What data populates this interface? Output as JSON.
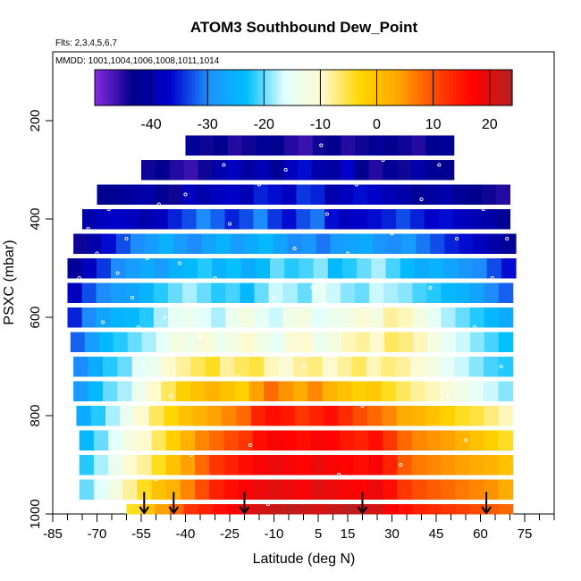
{
  "chart_data": {
    "type": "heatmap",
    "title": "ATOM3 Southbound Dew_Point",
    "flights_label": "Flts: 2,3,4,5,6,7",
    "dates_label": "MMDD: 1001,1004,1006,1008,1011,1014",
    "xlabel": "Latitude (deg N)",
    "ylabel": "PSXC (mbar)",
    "xlim": [
      -85,
      85
    ],
    "ylim": [
      1000,
      60
    ],
    "x_ticks": [
      "-85",
      "-70",
      "-55",
      "-40",
      "-25",
      "-10",
      "5",
      "15",
      "30",
      "45",
      "60",
      "75"
    ],
    "x_tick_values": [
      -85,
      -70,
      -55,
      -40,
      -25,
      -10,
      5,
      15,
      30,
      45,
      60,
      75
    ],
    "y_ticks": [
      "200",
      "400",
      "600",
      "800",
      "1000"
    ],
    "y_tick_values": [
      200,
      400,
      600,
      800,
      1000
    ],
    "colorbar": {
      "min": -50,
      "max": 24,
      "step": 10,
      "tick_values": [
        -40,
        -30,
        -20,
        -10,
        0,
        10,
        20
      ],
      "tick_labels": [
        "-40",
        "-30",
        "-20",
        "-10",
        "0",
        "10",
        "20"
      ],
      "colors": [
        "#8a2be2",
        "#00008b",
        "#0000cd",
        "#1e90ff",
        "#00bfff",
        "#e0ffff",
        "#fffacd",
        "#ffd700",
        "#ffa500",
        "#ff4500",
        "#ff0000",
        "#b22222"
      ]
    },
    "pressure_levels": [
      250,
      300,
      350,
      400,
      450,
      500,
      550,
      600,
      650,
      700,
      750,
      800,
      850,
      900,
      950,
      1000
    ],
    "lat_bins": [
      -80,
      -75,
      -70,
      -65,
      -60,
      -55,
      -50,
      -45,
      -40,
      -35,
      -30,
      -25,
      -20,
      -15,
      -10,
      -5,
      0,
      5,
      10,
      15,
      20,
      25,
      30,
      35,
      40,
      45,
      50,
      55,
      60,
      65,
      70
    ],
    "rows": [
      {
        "p": 250,
        "lat_min": -40,
        "lat_max": 51,
        "values": [
          -42,
          -44,
          -43,
          -45,
          -44,
          -42,
          -43,
          -45,
          -46,
          -44,
          -43,
          -45,
          -44,
          -42,
          -43,
          -44,
          -45,
          -43,
          -42
        ]
      },
      {
        "p": 300,
        "lat_min": -55,
        "lat_max": 51,
        "values": [
          -44,
          -43,
          -45,
          -46,
          -44,
          -40,
          -38,
          -41,
          -39,
          -42,
          -38,
          -36,
          -40,
          -41,
          -37,
          -43,
          -45,
          -42,
          -44,
          -40,
          -42,
          -43
        ]
      },
      {
        "p": 350,
        "lat_min": -70,
        "lat_max": 70,
        "values": [
          -43,
          -42,
          -41,
          -40,
          -42,
          -44,
          -38,
          -40,
          -38,
          -37,
          -39,
          -35,
          -36,
          -38,
          -34,
          -35,
          -40,
          -38,
          -36,
          -37,
          -39,
          -40,
          -42,
          -41,
          -40,
          -42,
          -43,
          -44,
          -45
        ]
      },
      {
        "p": 400,
        "lat_min": -75,
        "lat_max": 70,
        "values": [
          -40,
          -38,
          -37,
          -38,
          -40,
          -38,
          -35,
          -33,
          -30,
          -32,
          -35,
          -33,
          -30,
          -34,
          -36,
          -33,
          -31,
          -36,
          -38,
          -37,
          -36,
          -35,
          -33,
          -35,
          -37,
          -36,
          -38,
          -39,
          -40,
          -42
        ]
      },
      {
        "p": 450,
        "lat_min": -78,
        "lat_max": 72,
        "values": [
          -44,
          -40,
          -36,
          -33,
          -30,
          -28,
          -25,
          -28,
          -30,
          -27,
          -25,
          -28,
          -26,
          -24,
          -27,
          -30,
          -29,
          -31,
          -28,
          -27,
          -26,
          -29,
          -30,
          -28,
          -31,
          -33,
          -35,
          -36,
          -38,
          -40,
          -42
        ]
      },
      {
        "p": 500,
        "lat_min": -80,
        "lat_max": 72,
        "values": [
          -42,
          -38,
          -34,
          -30,
          -28,
          -26,
          -28,
          -25,
          -24,
          -22,
          -25,
          -23,
          -26,
          -24,
          -20,
          -22,
          -21,
          -19,
          -24,
          -22,
          -20,
          -18,
          -21,
          -24,
          -26,
          -25,
          -27,
          -29,
          -30,
          -33,
          -36
        ]
      },
      {
        "p": 550,
        "lat_min": -80,
        "lat_max": 71,
        "values": [
          -38,
          -33,
          -30,
          -28,
          -27,
          -25,
          -22,
          -20,
          -18,
          -20,
          -22,
          -21,
          -24,
          -20,
          -17,
          -18,
          -20,
          -15,
          -17,
          -19,
          -20,
          -17,
          -18,
          -19,
          -21,
          -22,
          -24,
          -25,
          -27,
          -30,
          -32
        ]
      },
      {
        "p": 600,
        "lat_min": -80,
        "lat_max": 71,
        "values": [
          -35,
          -30,
          -27,
          -25,
          -24,
          -22,
          -18,
          -15,
          -14,
          -16,
          -18,
          -14,
          -12,
          -15,
          -17,
          -13,
          -12,
          -16,
          -14,
          -13,
          -11,
          -12,
          -8,
          -9,
          -12,
          -15,
          -18,
          -20,
          -22,
          -24,
          -26
        ]
      },
      {
        "p": 650,
        "lat_min": -79,
        "lat_max": 71,
        "values": [
          -32,
          -28,
          -24,
          -22,
          -20,
          -18,
          -15,
          -12,
          -13,
          -11,
          -14,
          -12,
          -10,
          -13,
          -15,
          -11,
          -10,
          -14,
          -12,
          -9,
          -8,
          -10,
          -6,
          -7,
          -9,
          -12,
          -15,
          -17,
          -19,
          -21,
          -23
        ]
      },
      {
        "p": 700,
        "lat_min": -78,
        "lat_max": 71,
        "values": [
          -30,
          -26,
          -22,
          -20,
          -16,
          -14,
          -10,
          -8,
          -6,
          -4,
          -8,
          -6,
          -5,
          -9,
          -11,
          -8,
          -7,
          -10,
          -8,
          -6,
          -9,
          -7,
          -8,
          -10,
          -12,
          -15,
          -17,
          -19,
          -21,
          -22
        ]
      },
      {
        "p": 750,
        "lat_min": -78,
        "lat_max": 71,
        "values": [
          -28,
          -24,
          -20,
          -18,
          -14,
          -10,
          -6,
          -2,
          0,
          2,
          0,
          -2,
          4,
          8,
          5,
          3,
          6,
          2,
          0,
          -2,
          -1,
          -4,
          -6,
          -8,
          -9,
          -11,
          -13,
          -15,
          -17,
          -19
        ]
      },
      {
        "p": 800,
        "lat_min": -77,
        "lat_max": 71,
        "values": [
          -26,
          -22,
          -18,
          -14,
          -10,
          -6,
          -3,
          0,
          2,
          4,
          6,
          8,
          14,
          16,
          15,
          12,
          14,
          16,
          13,
          10,
          8,
          6,
          3,
          2,
          0,
          -2,
          -4,
          -5,
          -7,
          -9
        ]
      },
      {
        "p": 850,
        "lat_min": -76,
        "lat_max": 71,
        "values": [
          -24,
          -20,
          -16,
          -12,
          -10,
          -6,
          -2,
          2,
          6,
          8,
          10,
          12,
          16,
          18,
          17,
          16,
          18,
          17,
          15,
          14,
          16,
          12,
          8,
          6,
          5,
          4,
          2,
          0,
          -2,
          -4
        ]
      },
      {
        "p": 900,
        "lat_min": -76,
        "lat_max": 71,
        "values": [
          -22,
          -18,
          -14,
          -10,
          -8,
          -4,
          0,
          4,
          8,
          12,
          14,
          16,
          18,
          19,
          18,
          17,
          19,
          18,
          17,
          16,
          18,
          14,
          9,
          7,
          6,
          5,
          4,
          3,
          2,
          0
        ]
      },
      {
        "p": 950,
        "lat_min": -76,
        "lat_max": 71,
        "values": [
          -20,
          -16,
          -12,
          -8,
          -4,
          0,
          2,
          6,
          10,
          14,
          16,
          18,
          19,
          20,
          19,
          18,
          20,
          19,
          18,
          17,
          19,
          16,
          12,
          10,
          9,
          8,
          7,
          6,
          5,
          3
        ]
      },
      {
        "p": 1000,
        "lat_min": -60,
        "lat_max": 71,
        "values": [
          -4,
          0,
          4,
          8,
          12,
          14,
          16,
          18,
          20,
          21,
          22,
          23,
          22,
          21,
          22,
          23,
          22,
          21,
          18,
          16,
          14,
          13,
          12,
          11,
          10,
          9,
          8
        ]
      }
    ],
    "arrows_lat": [
      -54,
      -44,
      -20,
      20,
      62
    ],
    "white_markers": [
      [
        -73,
        420
      ],
      [
        -70,
        470
      ],
      [
        -66,
        380
      ],
      [
        -63,
        510
      ],
      [
        -60,
        440
      ],
      [
        -58,
        560
      ],
      [
        -56,
        620
      ],
      [
        -54,
        700
      ],
      [
        -52,
        840
      ],
      [
        -50,
        930
      ],
      [
        -47,
        600
      ],
      [
        -45,
        760
      ],
      [
        -42,
        490
      ],
      [
        -40,
        350
      ],
      [
        -38,
        880
      ],
      [
        -35,
        640
      ],
      [
        -30,
        520
      ],
      [
        -27,
        290
      ],
      [
        -25,
        410
      ],
      [
        -22,
        720
      ],
      [
        -18,
        860
      ],
      [
        -15,
        330
      ],
      [
        -12,
        980
      ],
      [
        -10,
        560
      ],
      [
        -6,
        300
      ],
      [
        -3,
        460
      ],
      [
        0,
        700
      ],
      [
        3,
        540
      ],
      [
        6,
        250
      ],
      [
        8,
        390
      ],
      [
        10,
        620
      ],
      [
        12,
        920
      ],
      [
        15,
        470
      ],
      [
        18,
        330
      ],
      [
        20,
        780
      ],
      [
        24,
        580
      ],
      [
        27,
        280
      ],
      [
        30,
        430
      ],
      [
        33,
        900
      ],
      [
        36,
        680
      ],
      [
        40,
        360
      ],
      [
        43,
        540
      ],
      [
        46,
        290
      ],
      [
        49,
        760
      ],
      [
        52,
        440
      ],
      [
        55,
        850
      ],
      [
        58,
        620
      ],
      [
        61,
        380
      ],
      [
        64,
        520
      ],
      [
        67,
        700
      ],
      [
        69,
        440
      ],
      [
        -76,
        520
      ],
      [
        -68,
        610
      ],
      [
        -61,
        780
      ],
      [
        -53,
        480
      ],
      [
        -49,
        370
      ]
    ]
  }
}
